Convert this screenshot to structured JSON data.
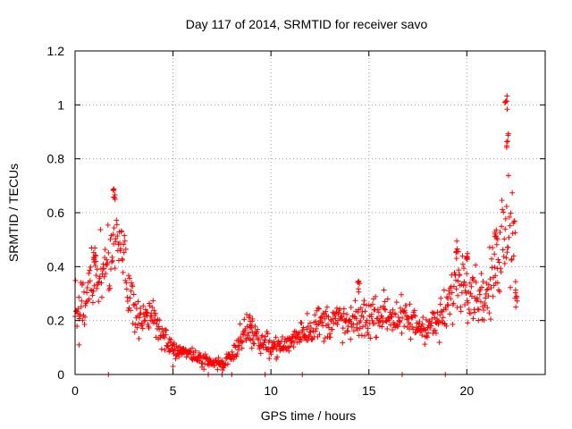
{
  "chart_data": {
    "type": "scatter",
    "title": "Day 117 of 2014, SRMTID for receiver savo",
    "xlabel": "GPS time / hours",
    "ylabel": "SRMTID / TECUs",
    "xlim": [
      0,
      24
    ],
    "ylim": [
      0,
      1.2
    ],
    "x_ticks": [
      0,
      5,
      10,
      15,
      20
    ],
    "x_tick_labels": [
      "0",
      "5",
      "10",
      "15",
      "20"
    ],
    "y_ticks": [
      0,
      0.2,
      0.4,
      0.6,
      0.8,
      1,
      1.2
    ],
    "y_tick_labels": [
      "0",
      "0.2",
      "0.4",
      "0.6",
      "0.8",
      "1",
      "1.2"
    ],
    "grid": true,
    "marker": "+",
    "color": "#ff0000",
    "trend": [
      [
        0,
        0.26
      ],
      [
        0.5,
        0.24
      ],
      [
        1.0,
        0.38
      ],
      [
        1.5,
        0.38
      ],
      [
        2.0,
        0.52
      ],
      [
        2.5,
        0.4
      ],
      [
        3.0,
        0.24
      ],
      [
        3.5,
        0.22
      ],
      [
        4.0,
        0.2
      ],
      [
        4.5,
        0.14
      ],
      [
        5.0,
        0.09
      ],
      [
        5.5,
        0.09
      ],
      [
        6.0,
        0.07
      ],
      [
        6.5,
        0.05
      ],
      [
        7.0,
        0.04
      ],
      [
        7.5,
        0.04
      ],
      [
        8.0,
        0.07
      ],
      [
        8.5,
        0.15
      ],
      [
        9.0,
        0.16
      ],
      [
        9.5,
        0.12
      ],
      [
        10.0,
        0.11
      ],
      [
        10.5,
        0.1
      ],
      [
        11.0,
        0.12
      ],
      [
        11.5,
        0.16
      ],
      [
        12.0,
        0.17
      ],
      [
        12.5,
        0.19
      ],
      [
        13.0,
        0.2
      ],
      [
        13.5,
        0.2
      ],
      [
        14.0,
        0.18
      ],
      [
        14.5,
        0.2
      ],
      [
        15.0,
        0.21
      ],
      [
        15.5,
        0.23
      ],
      [
        16.0,
        0.22
      ],
      [
        16.5,
        0.21
      ],
      [
        17.0,
        0.2
      ],
      [
        17.5,
        0.18
      ],
      [
        18.0,
        0.18
      ],
      [
        18.5,
        0.19
      ],
      [
        19.0,
        0.24
      ],
      [
        19.5,
        0.36
      ],
      [
        20.0,
        0.35
      ],
      [
        20.5,
        0.3
      ],
      [
        21.0,
        0.28
      ],
      [
        21.5,
        0.4
      ],
      [
        22.0,
        0.6
      ],
      [
        22.5,
        0.5
      ]
    ],
    "peaks": [
      [
        1.0,
        0.46
      ],
      [
        2.0,
        0.7
      ],
      [
        9.0,
        0.22
      ],
      [
        14.5,
        0.36
      ],
      [
        19.5,
        0.48
      ],
      [
        20.0,
        0.48
      ],
      [
        21.5,
        0.56
      ],
      [
        22.0,
        1.04
      ],
      [
        22.1,
        0.9
      ],
      [
        22.5,
        0.33
      ]
    ],
    "lows": [
      [
        0.2,
        0.11
      ],
      [
        1.7,
        0.0
      ],
      [
        5.0,
        0.03
      ],
      [
        6.8,
        0.0
      ],
      [
        7.5,
        0.0
      ],
      [
        8.0,
        0.0
      ],
      [
        9.7,
        0.0
      ],
      [
        11.6,
        0.0
      ],
      [
        16.7,
        0.0
      ],
      [
        18.9,
        0.0
      ],
      [
        22.5,
        0.25
      ]
    ]
  }
}
